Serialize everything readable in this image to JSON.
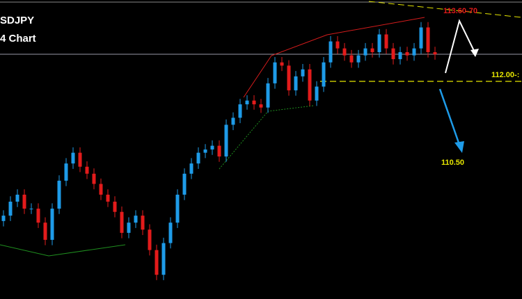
{
  "chart_data": {
    "type": "candlestick",
    "title": "SDJPY",
    "subtitle": "4 Chart",
    "up_color": "#1e9be8",
    "down_color": "#e31b1b",
    "ylim": [
      107.95,
      113.51
    ],
    "annotations": [
      "113.60-70",
      "112.00-:",
      "110.50"
    ],
    "open": [
      109.4,
      109.5,
      109.76,
      109.89,
      109.63,
      109.63,
      109.37,
      109.05,
      109.63,
      110.15,
      110.47,
      110.67,
      110.41,
      110.28,
      110.09,
      109.89,
      109.76,
      109.57,
      109.18,
      109.37,
      109.5,
      109.24,
      108.86,
      108.4,
      108.99,
      109.37,
      109.89,
      110.28,
      110.47,
      110.67,
      110.73,
      110.8,
      110.6,
      111.19,
      111.32,
      111.57,
      111.64,
      111.57,
      111.51,
      111.96,
      112.35,
      112.29,
      111.83,
      112.09,
      112.22,
      111.64,
      111.9,
      112.35,
      112.74,
      112.61,
      112.48,
      112.35,
      112.48,
      112.61,
      112.54,
      112.87,
      112.61,
      112.41,
      112.54,
      112.48,
      112.61,
      113.0,
      112.54
    ],
    "high": [
      109.6,
      109.86,
      109.99,
      109.99,
      109.73,
      109.73,
      109.47,
      109.73,
      110.25,
      110.57,
      110.77,
      110.77,
      110.51,
      110.38,
      110.19,
      109.99,
      109.86,
      109.67,
      109.47,
      109.6,
      109.6,
      109.34,
      108.96,
      109.09,
      109.47,
      109.99,
      110.38,
      110.57,
      110.77,
      110.83,
      110.9,
      110.9,
      111.29,
      111.42,
      111.67,
      111.74,
      111.74,
      111.67,
      112.06,
      112.45,
      112.45,
      112.39,
      112.19,
      112.32,
      112.32,
      112.0,
      112.45,
      112.84,
      112.84,
      112.71,
      112.58,
      112.58,
      112.71,
      112.71,
      112.97,
      112.97,
      112.71,
      112.64,
      112.64,
      112.71,
      113.1,
      113.1,
      112.64
    ],
    "low": [
      109.3,
      109.4,
      109.66,
      109.53,
      109.53,
      109.27,
      108.95,
      108.95,
      109.53,
      110.05,
      110.37,
      110.31,
      110.18,
      109.99,
      109.79,
      109.66,
      109.47,
      109.08,
      109.08,
      109.27,
      109.14,
      108.76,
      108.3,
      108.3,
      108.89,
      109.27,
      109.79,
      110.18,
      110.37,
      110.57,
      110.63,
      110.5,
      110.5,
      111.09,
      111.22,
      111.47,
      111.47,
      111.41,
      111.41,
      111.86,
      112.19,
      111.73,
      111.73,
      111.99,
      111.54,
      111.54,
      111.8,
      112.25,
      112.51,
      112.38,
      112.25,
      112.25,
      112.38,
      112.44,
      112.44,
      112.51,
      112.31,
      112.31,
      112.38,
      112.38,
      112.51,
      112.44,
      112.4
    ],
    "close": [
      109.5,
      109.76,
      109.89,
      109.63,
      109.63,
      109.37,
      109.05,
      109.63,
      110.15,
      110.47,
      110.67,
      110.41,
      110.28,
      110.09,
      109.89,
      109.76,
      109.57,
      109.18,
      109.37,
      109.5,
      109.24,
      108.86,
      108.4,
      108.99,
      109.37,
      109.89,
      110.28,
      110.47,
      110.67,
      110.73,
      110.8,
      110.6,
      111.19,
      111.32,
      111.57,
      111.64,
      111.57,
      111.51,
      111.96,
      112.35,
      112.29,
      111.83,
      112.09,
      112.22,
      111.64,
      111.9,
      112.35,
      112.74,
      112.61,
      112.48,
      112.35,
      112.48,
      112.61,
      112.54,
      112.87,
      112.61,
      112.41,
      112.54,
      112.48,
      112.61,
      113.0,
      112.54,
      112.5
    ]
  }
}
